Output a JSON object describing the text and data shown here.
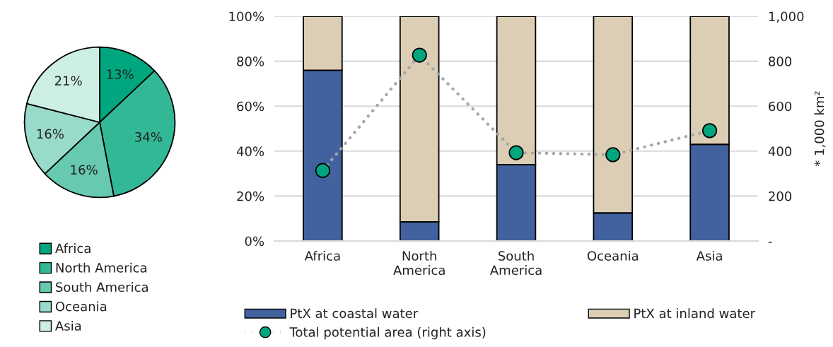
{
  "chart_data": [
    {
      "type": "pie",
      "categories": [
        "Africa",
        "North America",
        "South America",
        "Oceania",
        "Asia"
      ],
      "values": [
        13,
        34,
        16,
        16,
        21
      ],
      "colors": [
        "#00a67e",
        "#33b897",
        "#66c9b0",
        "#99dbca",
        "#cceee5"
      ],
      "value_labels": [
        "13%",
        "34%",
        "16%",
        "16%",
        "21%"
      ],
      "legend": "bottom"
    },
    {
      "type": "bar",
      "stacked": true,
      "categories": [
        "Africa",
        "North America",
        "South America",
        "Oceania",
        "Asia"
      ],
      "series": [
        {
          "name": "PtX at coastal water",
          "color": "#41629e",
          "values": [
            76,
            8.5,
            34,
            12.5,
            43
          ]
        },
        {
          "name": "PtX at inland water",
          "color": "#dbceb5",
          "values": [
            24,
            91.5,
            66,
            87.5,
            57
          ]
        },
        {
          "name": "Total potential area (right axis)",
          "type": "line",
          "axis": "y2",
          "color": "#00a67e",
          "marker": "circle",
          "line_style": "dotted",
          "values": [
            314,
            827,
            393,
            384,
            491
          ]
        }
      ],
      "ylim": [
        0,
        100
      ],
      "yticks": [
        {
          "value": 0,
          "label": "0%"
        },
        {
          "value": 20,
          "label": "20%"
        },
        {
          "value": 40,
          "label": "40%"
        },
        {
          "value": 60,
          "label": "60%"
        },
        {
          "value": 80,
          "label": "80%"
        },
        {
          "value": 100,
          "label": "100%"
        }
      ],
      "y2lim": [
        0,
        1000
      ],
      "y2ticks": [
        {
          "value": 0,
          "label": "-"
        },
        200,
        400,
        600,
        800,
        {
          "value": 1000,
          "label": "1,000"
        }
      ],
      "y2label": "* 1,000 km²",
      "grid": "y",
      "legend": "bottom"
    }
  ]
}
